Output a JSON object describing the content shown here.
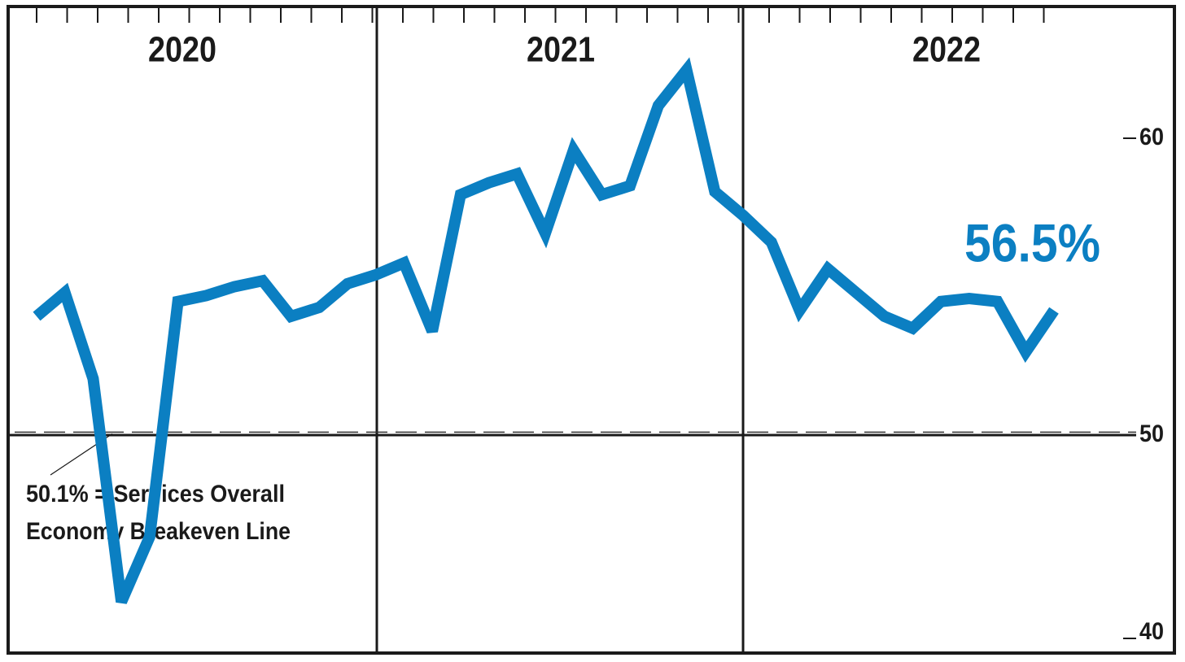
{
  "chart_data": {
    "type": "line",
    "year_labels": [
      "2020",
      "2021",
      "2022"
    ],
    "categories": [
      null,
      null,
      null,
      null,
      null,
      null,
      null,
      null,
      null,
      null,
      null,
      null,
      null,
      null,
      null,
      null,
      null,
      null,
      null,
      null,
      null,
      null,
      null,
      null,
      null,
      null,
      null,
      null,
      null,
      null,
      null,
      null,
      null,
      null,
      null,
      null,
      null
    ],
    "series": [
      {
        "color": "#0b7fc2",
        "values": [
          54.0,
          54.8,
          51.9,
          41.8,
          45.0,
          54.5,
          54.7,
          55.0,
          55.2,
          54.0,
          54.3,
          55.1,
          55.4,
          55.8,
          53.5,
          58.1,
          58.5,
          58.8,
          56.8,
          59.6,
          58.1,
          58.4,
          61.1,
          62.3,
          58.2,
          57.4,
          56.5,
          54.2,
          55.6,
          54.8,
          54.0,
          53.6,
          54.5,
          54.6,
          54.5,
          52.8,
          54.2
        ]
      }
    ],
    "ylim": [
      40,
      64.4
    ],
    "yticks": [
      40,
      50,
      60
    ],
    "axis_line": 50,
    "breakeven": 50.1,
    "annotation": [
      "50.1% = Services Overall",
      "Economy Breakeven Line"
    ],
    "callout": "56.5%"
  }
}
